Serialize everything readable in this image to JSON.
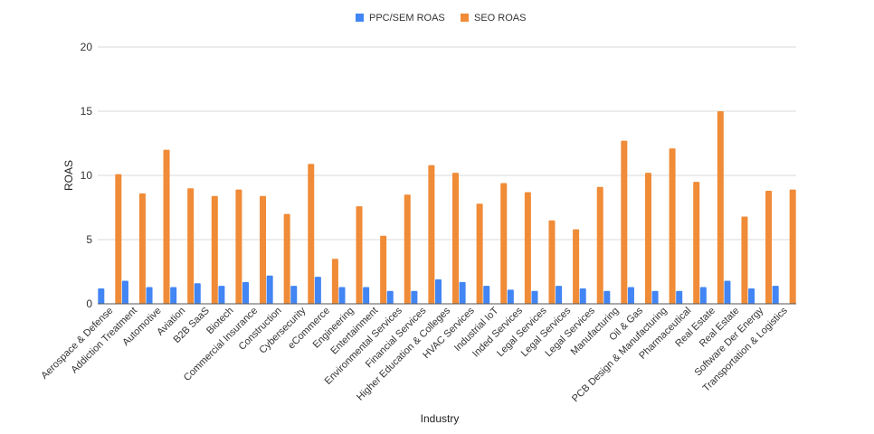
{
  "chart_data": {
    "type": "bar",
    "xlabel": "Industry",
    "ylabel": "ROAS",
    "ylim": [
      0,
      20
    ],
    "yticks": [
      "0",
      "5",
      "10",
      "15",
      "20"
    ],
    "grid": true,
    "legend_position": "top",
    "categories": [
      "Aerospace & Defense",
      "Addiction Treatment",
      "Automotive",
      "Aviation",
      "B2B SaaS",
      "Biotech",
      "Commercial Insurance",
      "Construction",
      "Cybersecurity",
      "eCommerce",
      "Engineering",
      "Entertainment",
      "Environmental Services",
      "Financial Services",
      "Higher Education & Colleges",
      "HVAC Services",
      "Industrial IoT",
      "Inded Services",
      "Legal Services",
      "Legal Services",
      "Legal Services",
      "Manufacturing",
      "Oil & Gas",
      "PCB Design & Manufacturing",
      "Pharmaceutical",
      "Real Estate",
      "Real Estate",
      "Software Der Energy",
      "Transportation & Logistics"
    ],
    "series": [
      {
        "name": "PPC/SEM ROAS",
        "color": "#4285f4",
        "values": [
          1.2,
          1.8,
          1.3,
          1.3,
          1.6,
          1.4,
          1.7,
          2.2,
          1.4,
          2.1,
          1.3,
          1.3,
          1.0,
          1.0,
          1.9,
          1.7,
          1.4,
          1.1,
          1.0,
          1.4,
          1.2,
          1.0,
          1.3,
          1.0,
          1.0,
          1.3,
          1.8,
          1.2,
          1.4
        ]
      },
      {
        "name": "SEO ROAS",
        "color": "#f08b37",
        "values": [
          10.1,
          8.6,
          12.0,
          9.0,
          8.4,
          8.9,
          8.4,
          7.0,
          10.9,
          3.5,
          7.6,
          5.3,
          8.5,
          10.8,
          10.2,
          7.8,
          9.4,
          8.7,
          6.5,
          5.8,
          9.1,
          12.7,
          10.2,
          12.1,
          9.5,
          15.0,
          6.8,
          8.8,
          8.9
        ]
      }
    ]
  }
}
